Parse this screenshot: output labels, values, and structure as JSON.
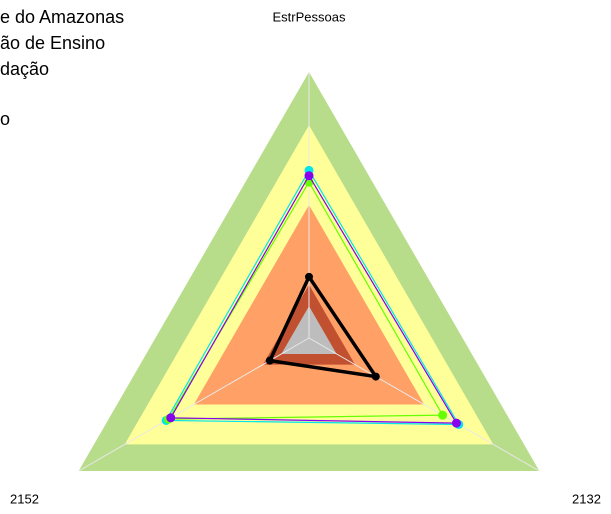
{
  "chart_data": {
    "type": "radar",
    "axes": [
      "EstrPessoas",
      "2132",
      "2152"
    ],
    "rlim": [
      0,
      100
    ],
    "bands": [
      {
        "value": 100,
        "color": "#b8dd8a"
      },
      {
        "value": 80,
        "color": "#ffff99"
      },
      {
        "value": 50,
        "color": "#ffa066"
      },
      {
        "value": 20,
        "color": "#c05030"
      },
      {
        "value": 12,
        "color": "#bdbdbd"
      }
    ],
    "series": [
      {
        "name": "e do Amazonas",
        "color": "#00e5ee",
        "values": [
          63,
          65,
          62
        ]
      },
      {
        "name": "ão de Ensino",
        "color": "#66ff00",
        "values": [
          58.6,
          58,
          61
        ]
      },
      {
        "name": "dação",
        "color": "#8800ee",
        "values": [
          61,
          64,
          60
        ]
      },
      {
        "name": "o",
        "color": "#000000",
        "values": [
          23,
          29,
          17
        ]
      }
    ]
  }
}
